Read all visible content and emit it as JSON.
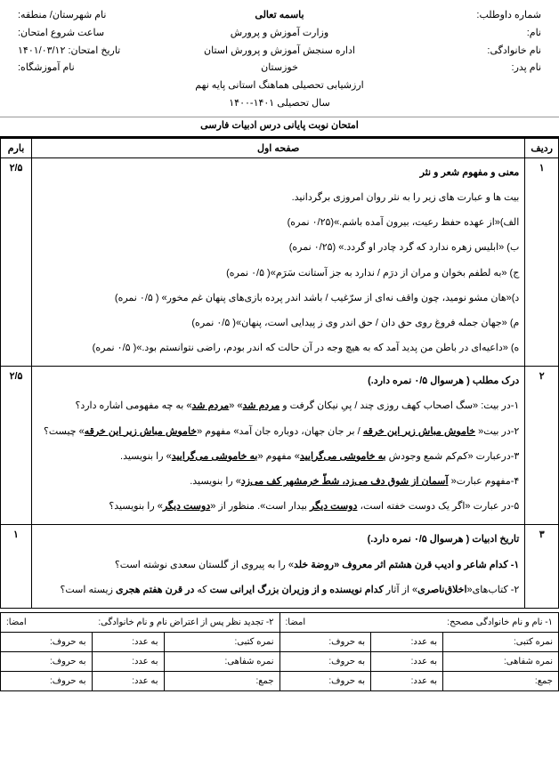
{
  "header": {
    "right": {
      "candidate_no": "شماره داوطلب:",
      "name": "نام:",
      "family": "نام خانوادگی:",
      "father": "نام پدر:"
    },
    "center": {
      "bismillah": "باسمه تعالی",
      "ministry": "وزارت آموزش و پرورش",
      "dept": "اداره سنجش آموزش و پرورش استان خوزستان",
      "eval": "ارزشیابی تحصیلی هماهنگ استانی پایه نهم  سال تحصیلی ۱۴۰۱-۱۴۰۰"
    },
    "left": {
      "region": "نام شهرستان/ منطقه:",
      "start_time": "ساعت شروع امتحان:",
      "exam_date": "تاریخ امتحان: ۱۴۰۱/۰۳/۱۲",
      "school": "نام آموزشگاه:"
    },
    "exam_title": "امتحان نوبت پایانی  درس ادبیات فارسی"
  },
  "table": {
    "col_row": "ردیف",
    "col_page": "صفحه اول",
    "col_score": "بارم"
  },
  "q1": {
    "num": "۱",
    "score": "۲/۵",
    "title": "معنی و  مفهوم شعر و نثر",
    "intro": "بیت ها و عبارت های زیر را به نثر روان امروزی برگردانید.",
    "a": "الف)«از عهده حفظ رعیت، بیرون آمده باشم.»(۰/۲۵ نمره)",
    "b": "ب) «ابلیس زهره ندارد که گرد چادر او گردد.» (۰/۲۵ نمره)",
    "c": "ج) «به لطفم بخوان و مران از درَم  /  ندارد به جز آستانت سَرَم»( ۰/۵ نمره)",
    "d": "د)«هان مشو نومید، چون واقف نه‌ای از سرّغیب  /  باشد اندر پرده بازی‌های پنهان غم مخور» ( ۰/۵ نمره)",
    "e": "م) «جهان جمله فروغ روی حق دان  /  حق اندر وی ز پیدایی است، پنهان»( ۰/۵ نمره)",
    "f": "ه) «داعیه‌ای در باطن من پدید آمد که به هیچ وجه در آن حالت که اندر بودم، راضی نتوانستم بود.»( ۰/۵ نمره)"
  },
  "q2": {
    "num": "۲",
    "score": "۲/۵",
    "title": "درک مطلب ( هرسوال ۰/۵ نمره دارد.)",
    "l1_a": "۱-در بیت: «سگ اصحاب کهف روزی چند /  پیِ نیکان گرفت و ",
    "l1_u1": "مردم شد",
    "l1_b": "» «",
    "l1_u2": "مردم شد",
    "l1_c": "» به چه مفهومی اشاره دارد؟",
    "l2_a": "۲-در بیت« ",
    "l2_u1": "خاموش مباش زیر این خرقه",
    "l2_b": "  /  بر جان جهان، دوباره جان آمد» مفهوم «",
    "l2_u2": "خاموش مباش زیر این خرقه",
    "l2_c": "» چیست؟",
    "l3_a": "۳-درعبارت «کم‌کم شمع وجودش ",
    "l3_u1": "به خاموشی می‌گرایید",
    "l3_b": "» مفهوم «",
    "l3_u2": "به خاموشی می‌گرایید",
    "l3_c": "» را بنویسید.",
    "l4_a": "۴-مفهوم عبارت« ",
    "l4_u1": "آسمان از شوق دف می‌زد، شطّ خرمشهر کف می‌زد",
    "l4_b": "» را بنویسید.",
    "l5_a": "۵-در عبارت «اگر یک دوست خفته است، ",
    "l5_u1": "دوست دیگر",
    "l5_b": " بیدار است». منظور از «",
    "l5_u2": "دوست دیگر",
    "l5_c": "» را بنویسید؟"
  },
  "q3": {
    "num": "۳",
    "score": "۱",
    "title": "تاریخ ادبیات ( هرسوال ۰/۵ نمره دارد.)",
    "l1_a": "۱- کدام شاعر و ادیب قرن هشتم  اثر معروف «",
    "l1_b": "روضة خلد",
    "l1_c": "» را به پیروی از گلستان سعدی نوشته است؟",
    "l2_a": "۲- کتاب‌های«",
    "l2_b": "اخلاق‌ناصری",
    "l2_c": "» از آثار ",
    "l2_d": "کدام نویسنده و از وزیران بزرگ ایرانی ست",
    "l2_e": " که ",
    "l2_f": "در قرن هفتم هجری",
    "l2_g": " زیسته است؟"
  },
  "footer": {
    "corrector": "۱- نام و نام خانوادگی مصحح:",
    "sign1": "امضا:",
    "review": "۲- تجدید نظر پس از اعتراض نام و نام خانوادگی:",
    "sign2": "امضا:",
    "written": "نمره کتبی:",
    "oral": "نمره شفاهی:",
    "total": "جمع:",
    "num": "به عدد:",
    "word": "به حروف:"
  }
}
